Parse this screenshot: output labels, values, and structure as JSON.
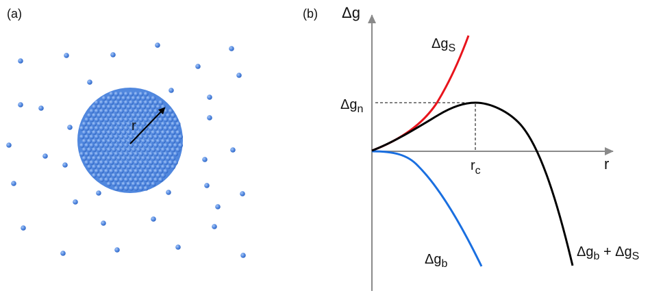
{
  "panel_a": {
    "label": "(a)",
    "radius_label": "r",
    "colors": {
      "atom": "#4f86e0",
      "atom_stroke": "#3a6fc8",
      "cluster": "#5b93e6",
      "arrow": "#000000"
    }
  },
  "panel_b": {
    "label": "(b)",
    "y_axis_symbol": "Δg",
    "x_axis_symbol": "r",
    "peak_label_main": "Δg",
    "peak_label_sub": "n",
    "critical_label_main": "r",
    "critical_label_sub": "c",
    "curves": [
      {
        "key": "surface",
        "label_main": "Δg",
        "label_sub": "S",
        "color": "#e8141c"
      },
      {
        "key": "total",
        "label_main": "Δg",
        "label_sub": "b",
        "label_plus": " + Δg",
        "label_sub2": "S",
        "color": "#000000"
      },
      {
        "key": "bulk",
        "label_main": "Δg",
        "label_sub": "b",
        "color": "#1a6fe0"
      }
    ],
    "axis_color": "#8a8a8a"
  }
}
